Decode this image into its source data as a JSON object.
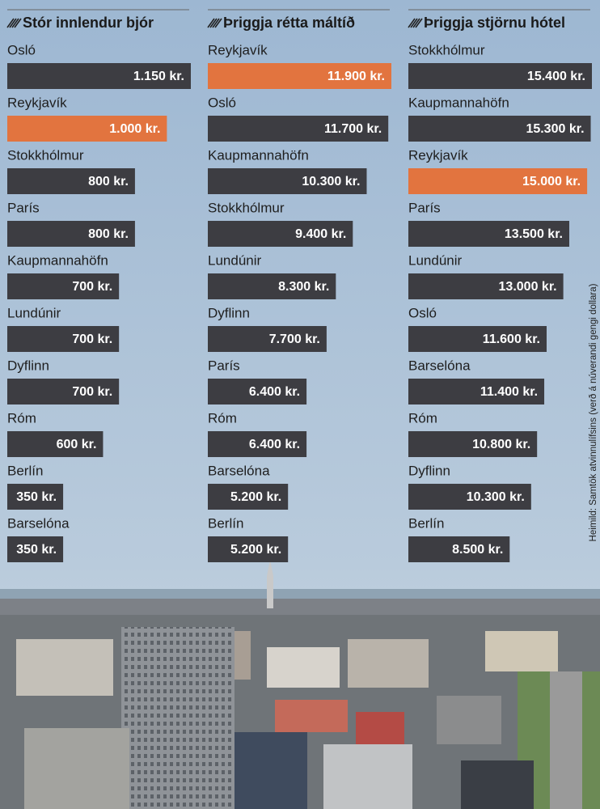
{
  "chart_data": [
    {
      "type": "bar",
      "orientation": "horizontal",
      "title": "Stór innlendur bjór",
      "categories": [
        "Osló",
        "Reykjavík",
        "Stokkhólmur",
        "París",
        "Kaupmannahöfn",
        "Lundúnir",
        "Dyflinn",
        "Róm",
        "Berlín",
        "Barselóna"
      ],
      "values": [
        1150,
        1000,
        800,
        800,
        700,
        700,
        700,
        600,
        350,
        350
      ],
      "value_labels": [
        "1.150 kr.",
        "1.000 kr.",
        "800 kr.",
        "800 kr.",
        "700 kr.",
        "700 kr.",
        "700 kr.",
        "600 kr.",
        "350 kr.",
        "350 kr."
      ],
      "colors": [
        "#3d3d42",
        "#e2743f",
        "#3d3d42",
        "#3d3d42",
        "#3d3d42",
        "#3d3d42",
        "#3d3d42",
        "#3d3d42",
        "#3d3d42",
        "#3d3d42"
      ],
      "xlim": [
        0,
        1150
      ]
    },
    {
      "type": "bar",
      "orientation": "horizontal",
      "title": "Þriggja rétta máltíð",
      "categories": [
        "Reykjavík",
        "Osló",
        "Kaupmannahöfn",
        "Stokkhólmur",
        "Lundúnir",
        "Dyflinn",
        "París",
        "Róm",
        "Barselóna",
        "Berlín"
      ],
      "values": [
        11900,
        11700,
        10300,
        9400,
        8300,
        7700,
        6400,
        6400,
        5200,
        5200
      ],
      "value_labels": [
        "11.900 kr.",
        "11.700 kr.",
        "10.300 kr.",
        "9.400 kr.",
        "8.300 kr.",
        "7.700 kr.",
        "6.400 kr.",
        "6.400 kr.",
        "5.200 kr.",
        "5.200 kr."
      ],
      "colors": [
        "#e2743f",
        "#3d3d42",
        "#3d3d42",
        "#3d3d42",
        "#3d3d42",
        "#3d3d42",
        "#3d3d42",
        "#3d3d42",
        "#3d3d42",
        "#3d3d42"
      ],
      "xlim": [
        0,
        11900
      ]
    },
    {
      "type": "bar",
      "orientation": "horizontal",
      "title": "Þriggja stjörnu hótel",
      "categories": [
        "Stokkhólmur",
        "Kaupmannahöfn",
        "Reykjavík",
        "París",
        "Lundúnir",
        "Osló",
        "Barselóna",
        "Róm",
        "Dyflinn",
        "Berlín"
      ],
      "values": [
        15400,
        15300,
        15000,
        13500,
        13000,
        11600,
        11400,
        10800,
        10300,
        8500
      ],
      "value_labels": [
        "15.400 kr.",
        "15.300 kr.",
        "15.000 kr.",
        "13.500 kr.",
        "13.000 kr.",
        "11.600 kr.",
        "11.400 kr.",
        "10.800 kr.",
        "10.300 kr.",
        "8.500 kr."
      ],
      "colors": [
        "#3d3d42",
        "#3d3d42",
        "#e2743f",
        "#3d3d42",
        "#3d3d42",
        "#3d3d42",
        "#3d3d42",
        "#3d3d42",
        "#3d3d42",
        "#3d3d42"
      ],
      "xlim": [
        0,
        15400
      ]
    }
  ],
  "source": "Heimild: Samtök atvinnulífsins  (verð á núverandi gengi dollara)"
}
